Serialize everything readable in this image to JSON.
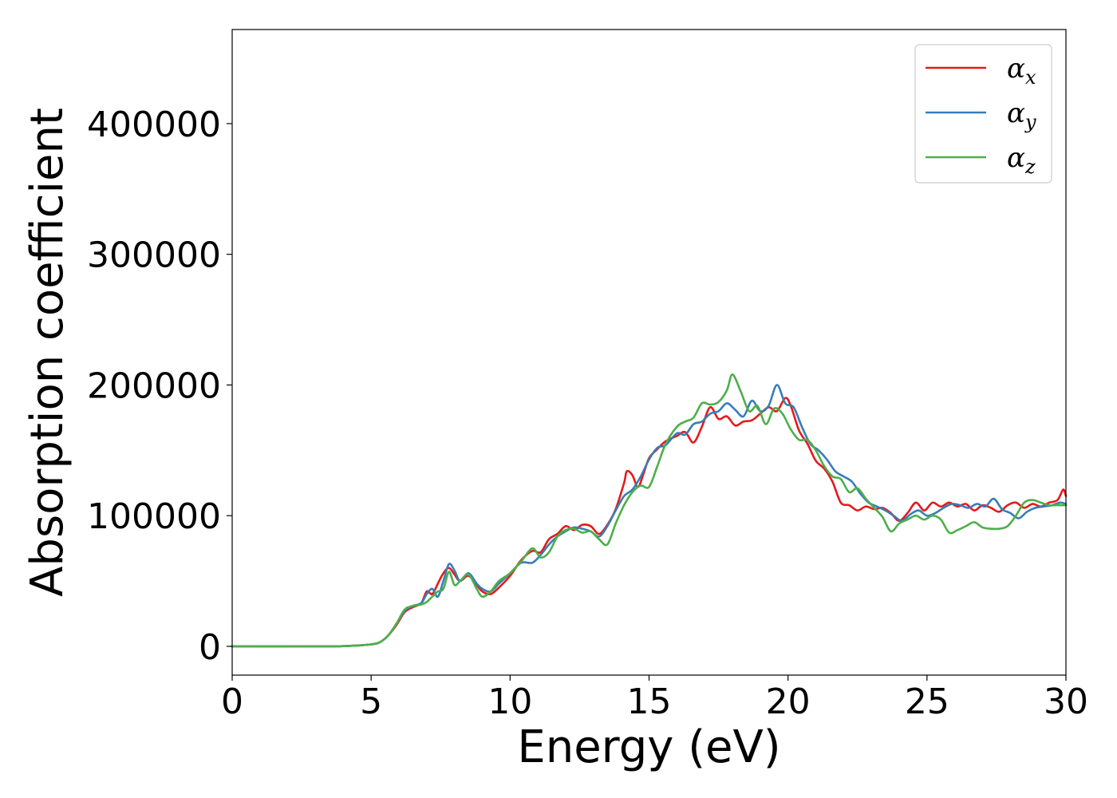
{
  "chart_data": {
    "type": "line",
    "title": "",
    "xlabel": "Energy (eV)",
    "ylabel": "Absorption coefficient",
    "xlim": [
      0,
      30
    ],
    "ylim": [
      -22000,
      472000
    ],
    "xticks": [
      0,
      5,
      10,
      15,
      20,
      25,
      30
    ],
    "xtick_labels": [
      "0",
      "5",
      "10",
      "15",
      "20",
      "25",
      "30"
    ],
    "yticks": [
      0,
      100000,
      200000,
      300000,
      400000
    ],
    "ytick_labels": [
      "0",
      "100000",
      "200000",
      "300000",
      "400000"
    ],
    "grid": false,
    "legend_position": "top-right",
    "series": [
      {
        "name": "α_x",
        "legend_base": "α",
        "legend_sub": "x",
        "color": "#e41a1c",
        "x": [
          0,
          3,
          4,
          4.6,
          5,
          5.3,
          5.6,
          5.9,
          6.2,
          6.5,
          6.8,
          7.0,
          7.2,
          7.4,
          7.6,
          7.8,
          8.0,
          8.2,
          8.5,
          8.8,
          9.0,
          9.3,
          9.6,
          10.0,
          10.4,
          10.8,
          11.1,
          11.4,
          11.7,
          12.0,
          12.3,
          12.6,
          12.9,
          13.2,
          13.5,
          13.8,
          14.1,
          14.2,
          14.4,
          14.6,
          14.8,
          15.0,
          15.3,
          15.6,
          16.0,
          16.3,
          16.6,
          16.9,
          17.2,
          17.5,
          17.8,
          18.1,
          18.4,
          18.7,
          19.0,
          19.3,
          19.6,
          19.9,
          20.1,
          20.4,
          20.7,
          21.0,
          21.3,
          21.6,
          21.9,
          22.2,
          22.5,
          22.8,
          23.1,
          23.4,
          23.7,
          24.0,
          24.3,
          24.6,
          24.9,
          25.2,
          25.5,
          25.8,
          26.1,
          26.4,
          26.7,
          27.0,
          27.3,
          27.6,
          27.9,
          28.2,
          28.5,
          28.8,
          29.1,
          29.4,
          29.7,
          29.9,
          30
        ],
        "y": [
          0,
          0,
          200,
          800,
          1500,
          3000,
          8000,
          16000,
          26000,
          30000,
          33000,
          42000,
          40000,
          48000,
          56000,
          60000,
          55000,
          50000,
          54000,
          47000,
          42000,
          40000,
          45000,
          54000,
          66000,
          73000,
          72000,
          82000,
          86000,
          92000,
          89000,
          93000,
          92000,
          86000,
          93000,
          105000,
          125000,
          134000,
          131000,
          122000,
          132000,
          144000,
          151000,
          157000,
          161000,
          164000,
          156000,
          168000,
          183000,
          174000,
          176000,
          169000,
          172000,
          173000,
          178000,
          183000,
          180000,
          190000,
          184000,
          165000,
          155000,
          142000,
          136000,
          126000,
          110000,
          108000,
          104000,
          107000,
          105000,
          106000,
          102000,
          96000,
          102000,
          110000,
          104000,
          110000,
          107000,
          110000,
          107000,
          109000,
          104000,
          108000,
          106000,
          103000,
          108000,
          110000,
          106000,
          109000,
          107000,
          110000,
          112000,
          120000,
          115000
        ]
      },
      {
        "name": "α_y",
        "legend_base": "α",
        "legend_sub": "y",
        "color": "#377eb8",
        "x": [
          0,
          3,
          4,
          4.6,
          5,
          5.3,
          5.6,
          5.9,
          6.2,
          6.5,
          6.8,
          7.0,
          7.2,
          7.4,
          7.6,
          7.8,
          8.0,
          8.2,
          8.5,
          8.8,
          9.0,
          9.3,
          9.6,
          10.0,
          10.4,
          10.8,
          11.1,
          11.4,
          11.7,
          12.0,
          12.3,
          12.6,
          12.9,
          13.2,
          13.5,
          13.8,
          14.1,
          14.4,
          14.7,
          15.0,
          15.3,
          15.6,
          16.0,
          16.3,
          16.6,
          16.9,
          17.2,
          17.5,
          17.8,
          18.1,
          18.4,
          18.7,
          19.0,
          19.3,
          19.6,
          19.9,
          20.2,
          20.5,
          20.8,
          21.1,
          21.4,
          21.7,
          22.0,
          22.3,
          22.6,
          22.9,
          23.2,
          23.5,
          23.8,
          24.1,
          24.4,
          24.7,
          25.0,
          25.3,
          25.6,
          25.9,
          26.2,
          26.5,
          26.8,
          27.1,
          27.4,
          27.7,
          28.0,
          28.3,
          28.6,
          28.9,
          29.2,
          29.5,
          29.8,
          30
        ],
        "y": [
          0,
          0,
          200,
          800,
          1500,
          3000,
          8000,
          17000,
          27000,
          31000,
          33000,
          40000,
          44000,
          38000,
          50000,
          63000,
          58000,
          50000,
          56000,
          48000,
          44000,
          42000,
          48000,
          56000,
          64000,
          64000,
          70000,
          78000,
          84000,
          88000,
          91000,
          90000,
          88000,
          84000,
          92000,
          104000,
          115000,
          120000,
          130000,
          143000,
          152000,
          154000,
          163000,
          162000,
          170000,
          172000,
          178000,
          180000,
          186000,
          181000,
          176000,
          188000,
          180000,
          184000,
          200000,
          186000,
          183000,
          168000,
          155000,
          150000,
          143000,
          134000,
          130000,
          126000,
          117000,
          110000,
          107000,
          104000,
          100000,
          96000,
          101000,
          104000,
          100000,
          102000,
          106000,
          109000,
          108000,
          106000,
          109000,
          107000,
          113000,
          105000,
          102000,
          98000,
          103000,
          106000,
          107000,
          108000,
          110000,
          109000
        ]
      },
      {
        "name": "α_z",
        "legend_base": "α",
        "legend_sub": "z",
        "color": "#4daf4a",
        "x": [
          0,
          3,
          4,
          4.6,
          5,
          5.3,
          5.6,
          5.9,
          6.2,
          6.5,
          6.8,
          7.0,
          7.2,
          7.4,
          7.6,
          7.8,
          8.0,
          8.2,
          8.5,
          8.8,
          9.0,
          9.3,
          9.6,
          10.0,
          10.4,
          10.8,
          11.1,
          11.4,
          11.7,
          12.0,
          12.3,
          12.6,
          12.9,
          13.2,
          13.5,
          13.8,
          14.1,
          14.4,
          14.7,
          15.0,
          15.3,
          15.6,
          16.0,
          16.3,
          16.6,
          16.9,
          17.2,
          17.5,
          17.8,
          18.0,
          18.3,
          18.6,
          18.9,
          19.2,
          19.5,
          19.8,
          20.1,
          20.4,
          20.7,
          21.0,
          21.3,
          21.6,
          21.9,
          22.2,
          22.5,
          22.8,
          23.1,
          23.4,
          23.7,
          24.0,
          24.3,
          24.6,
          24.9,
          25.2,
          25.5,
          25.8,
          26.1,
          26.4,
          26.7,
          27.0,
          27.3,
          27.6,
          27.9,
          28.2,
          28.5,
          28.8,
          29.1,
          29.4,
          29.7,
          30
        ],
        "y": [
          0,
          0,
          200,
          800,
          1500,
          3000,
          8000,
          17000,
          28000,
          31000,
          32000,
          34000,
          38000,
          42000,
          44000,
          57000,
          47000,
          50000,
          55000,
          44000,
          38000,
          42000,
          50000,
          56000,
          65000,
          75000,
          68000,
          72000,
          84000,
          89000,
          90000,
          87000,
          88000,
          82000,
          78000,
          94000,
          108000,
          118000,
          123000,
          122000,
          138000,
          155000,
          168000,
          172000,
          175000,
          186000,
          185000,
          187000,
          196000,
          208000,
          195000,
          180000,
          184000,
          170000,
          182000,
          178000,
          166000,
          158000,
          158000,
          150000,
          138000,
          130000,
          128000,
          118000,
          121000,
          113000,
          106000,
          99000,
          88000,
          94000,
          97000,
          100000,
          97000,
          100000,
          97000,
          87000,
          89000,
          92000,
          95000,
          91000,
          90000,
          90000,
          92000,
          100000,
          110000,
          112000,
          110000,
          108000,
          108000,
          108000
        ]
      }
    ]
  }
}
